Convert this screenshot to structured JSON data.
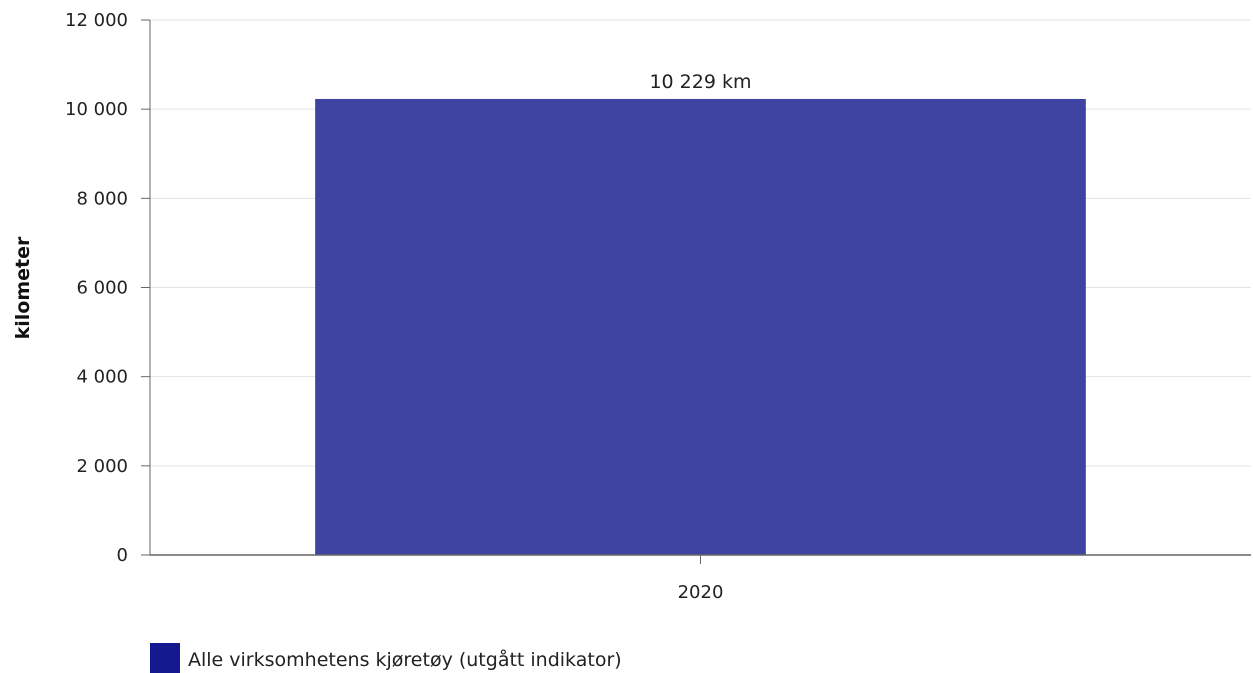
{
  "chart_data": {
    "type": "bar",
    "categories": [
      "2020"
    ],
    "series": [
      {
        "name": "Alle virksomhetens kjøretøy (utgått indikator)",
        "values": [
          10229
        ],
        "data_labels": [
          "10 229 km"
        ],
        "color": "#3f44a3"
      }
    ],
    "xlabel": "",
    "ylabel": "kilometer",
    "ylim": [
      0,
      12000
    ],
    "yticks": [
      0,
      2000,
      4000,
      6000,
      8000,
      10000,
      12000
    ],
    "ytick_labels": [
      "0",
      "2 000",
      "4 000",
      "6 000",
      "8 000",
      "10 000",
      "12 000"
    ],
    "grid": true,
    "legend_position": "bottom-left",
    "legend_swatch_color": "#14198f",
    "gridline_color": "#e3e3e3",
    "axis_color": "#666666"
  }
}
